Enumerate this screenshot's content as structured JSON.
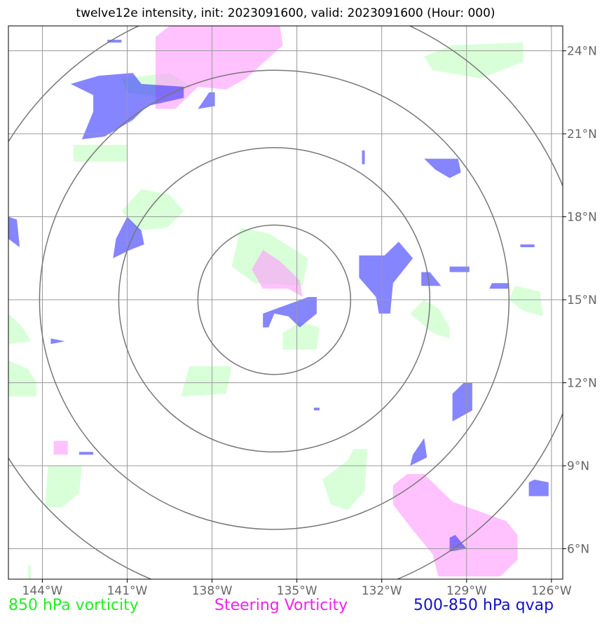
{
  "title": "twelve12e intensity, init: 2023091600, valid: 2023091600 (Hour: 000)",
  "map": {
    "lon_range": [
      -145.2,
      -125.6
    ],
    "lat_range": [
      4.9,
      24.9
    ],
    "lon_ticks": [
      {
        "value": -144,
        "label": "144°W"
      },
      {
        "value": -141,
        "label": "141°W"
      },
      {
        "value": -138,
        "label": "138°W"
      },
      {
        "value": -135,
        "label": "135°W"
      },
      {
        "value": -132,
        "label": "132°W"
      },
      {
        "value": -129,
        "label": "129°W"
      },
      {
        "value": -126,
        "label": "126°W"
      }
    ],
    "lat_ticks": [
      {
        "value": 6,
        "label": "6°N"
      },
      {
        "value": 9,
        "label": "9°N"
      },
      {
        "value": 12,
        "label": "12°N"
      },
      {
        "value": 15,
        "label": "15°N"
      },
      {
        "value": 18,
        "label": "18°N"
      },
      {
        "value": 21,
        "label": "21°N"
      },
      {
        "value": 24,
        "label": "24°N"
      }
    ],
    "grid": true,
    "center": {
      "lon": -135.8,
      "lat": 15.0
    },
    "range_rings_deg": [
      2.7,
      5.5,
      8.3,
      11.0
    ],
    "colors": {
      "vort850": "#ccffcc",
      "steering": "#ff99ff",
      "qvap": "#3333ff",
      "ring": "#777777",
      "grid": "#999999"
    },
    "vort850_polygons": [
      [
        [
          -141.2,
          23.0
        ],
        [
          -139.5,
          23.2
        ],
        [
          -138.7,
          22.7
        ],
        [
          -139.6,
          22.3
        ],
        [
          -141.0,
          22.5
        ]
      ],
      [
        [
          -129.5,
          24.2
        ],
        [
          -127.0,
          24.3
        ],
        [
          -127.0,
          23.6
        ],
        [
          -128.5,
          23.0
        ],
        [
          -130.2,
          23.3
        ],
        [
          -130.5,
          23.8
        ]
      ],
      [
        [
          -142.9,
          20.6
        ],
        [
          -141.0,
          20.6
        ],
        [
          -141.0,
          20.0
        ],
        [
          -142.9,
          20.0
        ]
      ],
      [
        [
          -140.5,
          19.0
        ],
        [
          -139.5,
          18.8
        ],
        [
          -139.0,
          18.2
        ],
        [
          -139.6,
          17.6
        ],
        [
          -140.6,
          17.5
        ],
        [
          -141.2,
          18.2
        ]
      ],
      [
        [
          -137.0,
          17.6
        ],
        [
          -136.0,
          17.4
        ],
        [
          -134.6,
          16.5
        ],
        [
          -134.8,
          15.5
        ],
        [
          -136.5,
          15.6
        ],
        [
          -137.3,
          16.2
        ]
      ],
      [
        [
          -134.9,
          14.2
        ],
        [
          -134.2,
          14.0
        ],
        [
          -134.3,
          13.2
        ],
        [
          -135.5,
          13.2
        ],
        [
          -135.5,
          13.8
        ]
      ],
      [
        [
          -130.5,
          15.0
        ],
        [
          -130.0,
          14.7
        ],
        [
          -129.6,
          14.0
        ],
        [
          -129.6,
          13.6
        ],
        [
          -130.2,
          13.8
        ],
        [
          -131.0,
          14.5
        ]
      ],
      [
        [
          -127.3,
          15.5
        ],
        [
          -126.4,
          15.3
        ],
        [
          -126.3,
          14.4
        ],
        [
          -127.0,
          14.6
        ],
        [
          -127.5,
          15.0
        ]
      ],
      [
        [
          -145.2,
          14.5
        ],
        [
          -144.7,
          14.0
        ],
        [
          -144.4,
          13.5
        ],
        [
          -145.2,
          13.4
        ]
      ],
      [
        [
          -145.2,
          12.8
        ],
        [
          -144.5,
          12.5
        ],
        [
          -144.2,
          12.0
        ],
        [
          -144.2,
          11.5
        ],
        [
          -145.2,
          11.5
        ]
      ],
      [
        [
          -138.8,
          12.6
        ],
        [
          -137.3,
          12.6
        ],
        [
          -137.5,
          11.6
        ],
        [
          -139.1,
          11.5
        ]
      ],
      [
        [
          -133.0,
          9.6
        ],
        [
          -132.5,
          9.6
        ],
        [
          -132.6,
          8.1
        ],
        [
          -133.2,
          7.4
        ],
        [
          -133.8,
          7.6
        ],
        [
          -134.1,
          8.5
        ],
        [
          -133.2,
          9.2
        ]
      ],
      [
        [
          -143.8,
          9.0
        ],
        [
          -142.6,
          9.0
        ],
        [
          -142.7,
          8.0
        ],
        [
          -143.3,
          7.5
        ],
        [
          -143.9,
          7.5
        ]
      ],
      [
        [
          -144.5,
          5.4
        ],
        [
          -144.4,
          5.4
        ],
        [
          -144.4,
          4.9
        ],
        [
          -144.5,
          4.9
        ]
      ]
    ],
    "steering_polygons": [
      [
        [
          -139.5,
          24.9
        ],
        [
          -135.6,
          24.9
        ],
        [
          -135.5,
          24.2
        ],
        [
          -136.8,
          23.0
        ],
        [
          -137.5,
          22.6
        ],
        [
          -138.5,
          22.7
        ],
        [
          -139.3,
          21.9
        ],
        [
          -140.0,
          21.9
        ],
        [
          -140.0,
          24.5
        ]
      ],
      [
        [
          -136.2,
          16.8
        ],
        [
          -135.6,
          16.4
        ],
        [
          -134.9,
          15.7
        ],
        [
          -134.8,
          15.1
        ],
        [
          -135.3,
          15.4
        ],
        [
          -136.2,
          15.4
        ],
        [
          -136.6,
          16.1
        ]
      ],
      [
        [
          -131.1,
          8.7
        ],
        [
          -130.5,
          8.7
        ],
        [
          -129.5,
          7.7
        ],
        [
          -127.6,
          7.0
        ],
        [
          -127.2,
          6.5
        ],
        [
          -127.2,
          5.6
        ],
        [
          -127.8,
          5.0
        ],
        [
          -130.0,
          5.0
        ],
        [
          -130.2,
          5.8
        ],
        [
          -131.0,
          6.8
        ],
        [
          -131.6,
          7.6
        ],
        [
          -131.6,
          8.3
        ]
      ],
      [
        [
          -143.6,
          9.9
        ],
        [
          -143.1,
          9.9
        ],
        [
          -143.1,
          9.4
        ],
        [
          -143.6,
          9.4
        ]
      ]
    ],
    "qvap_polygons": [
      [
        [
          -142.0,
          23.1
        ],
        [
          -140.8,
          23.2
        ],
        [
          -140.5,
          22.8
        ],
        [
          -139.0,
          22.7
        ],
        [
          -139.0,
          22.3
        ],
        [
          -140.3,
          22.0
        ],
        [
          -140.8,
          21.5
        ],
        [
          -141.8,
          20.9
        ],
        [
          -142.6,
          20.8
        ],
        [
          -142.2,
          21.8
        ],
        [
          -142.2,
          22.4
        ],
        [
          -143.0,
          22.8
        ]
      ],
      [
        [
          -138.1,
          22.5
        ],
        [
          -137.9,
          22.5
        ],
        [
          -137.9,
          22.0
        ],
        [
          -138.5,
          21.9
        ]
      ],
      [
        [
          -145.2,
          18.0
        ],
        [
          -144.9,
          17.9
        ],
        [
          -144.8,
          16.9
        ],
        [
          -145.2,
          17.2
        ]
      ],
      [
        [
          -141.0,
          18.0
        ],
        [
          -140.5,
          17.5
        ],
        [
          -140.4,
          17.0
        ],
        [
          -140.9,
          16.8
        ],
        [
          -141.5,
          16.5
        ],
        [
          -141.4,
          17.2
        ]
      ],
      [
        [
          -134.6,
          15.1
        ],
        [
          -134.3,
          15.1
        ],
        [
          -134.3,
          14.5
        ],
        [
          -134.9,
          14.0
        ],
        [
          -135.3,
          14.4
        ],
        [
          -135.8,
          14.5
        ],
        [
          -136.0,
          14.0
        ],
        [
          -136.2,
          14.0
        ],
        [
          -136.2,
          14.5
        ]
      ],
      [
        [
          -132.8,
          16.6
        ],
        [
          -131.9,
          16.6
        ],
        [
          -131.4,
          17.1
        ],
        [
          -130.9,
          16.5
        ],
        [
          -131.6,
          15.6
        ],
        [
          -131.7,
          14.5
        ],
        [
          -132.1,
          14.5
        ],
        [
          -132.2,
          15.1
        ],
        [
          -132.8,
          15.8
        ]
      ],
      [
        [
          -130.6,
          16.0
        ],
        [
          -130.3,
          16.0
        ],
        [
          -129.9,
          15.5
        ],
        [
          -130.6,
          15.5
        ]
      ],
      [
        [
          -129.6,
          16.2
        ],
        [
          -128.9,
          16.2
        ],
        [
          -128.9,
          16.0
        ],
        [
          -129.6,
          16.0
        ]
      ],
      [
        [
          -128.1,
          15.6
        ],
        [
          -127.5,
          15.6
        ],
        [
          -127.5,
          15.4
        ],
        [
          -128.2,
          15.4
        ]
      ],
      [
        [
          -127.1,
          17.0
        ],
        [
          -126.6,
          17.0
        ],
        [
          -126.6,
          16.9
        ],
        [
          -127.1,
          16.9
        ]
      ],
      [
        [
          -130.5,
          20.1
        ],
        [
          -129.3,
          20.1
        ],
        [
          -129.2,
          19.6
        ],
        [
          -129.6,
          19.4
        ],
        [
          -130.1,
          19.7
        ]
      ],
      [
        [
          -132.7,
          20.4
        ],
        [
          -132.6,
          20.4
        ],
        [
          -132.6,
          19.9
        ],
        [
          -132.7,
          19.9
        ]
      ],
      [
        [
          -143.7,
          13.6
        ],
        [
          -143.2,
          13.5
        ],
        [
          -143.7,
          13.4
        ]
      ],
      [
        [
          -129.1,
          12.0
        ],
        [
          -128.8,
          12.0
        ],
        [
          -128.8,
          11.0
        ],
        [
          -129.5,
          10.6
        ],
        [
          -129.5,
          11.6
        ]
      ],
      [
        [
          -130.5,
          10.0
        ],
        [
          -130.4,
          9.3
        ],
        [
          -131.0,
          9.0
        ],
        [
          -130.9,
          9.4
        ]
      ],
      [
        [
          -126.6,
          8.5
        ],
        [
          -126.1,
          8.4
        ],
        [
          -126.1,
          7.9
        ],
        [
          -126.8,
          7.9
        ],
        [
          -126.8,
          8.4
        ]
      ],
      [
        [
          -129.4,
          6.5
        ],
        [
          -129.0,
          6.0
        ],
        [
          -129.6,
          5.9
        ],
        [
          -129.6,
          6.4
        ]
      ],
      [
        [
          -142.7,
          9.5
        ],
        [
          -142.2,
          9.5
        ],
        [
          -142.2,
          9.4
        ],
        [
          -142.7,
          9.4
        ]
      ],
      [
        [
          -141.7,
          24.4
        ],
        [
          -141.2,
          24.4
        ],
        [
          -141.2,
          24.3
        ],
        [
          -141.7,
          24.3
        ]
      ],
      [
        [
          -134.4,
          11.1
        ],
        [
          -134.2,
          11.1
        ],
        [
          -134.2,
          11.0
        ],
        [
          -134.4,
          11.0
        ]
      ]
    ]
  },
  "legend": {
    "vort850": "850 hPa vorticity",
    "steering": "Steering Vorticity",
    "qvap": "500-850 hPa qvap"
  }
}
